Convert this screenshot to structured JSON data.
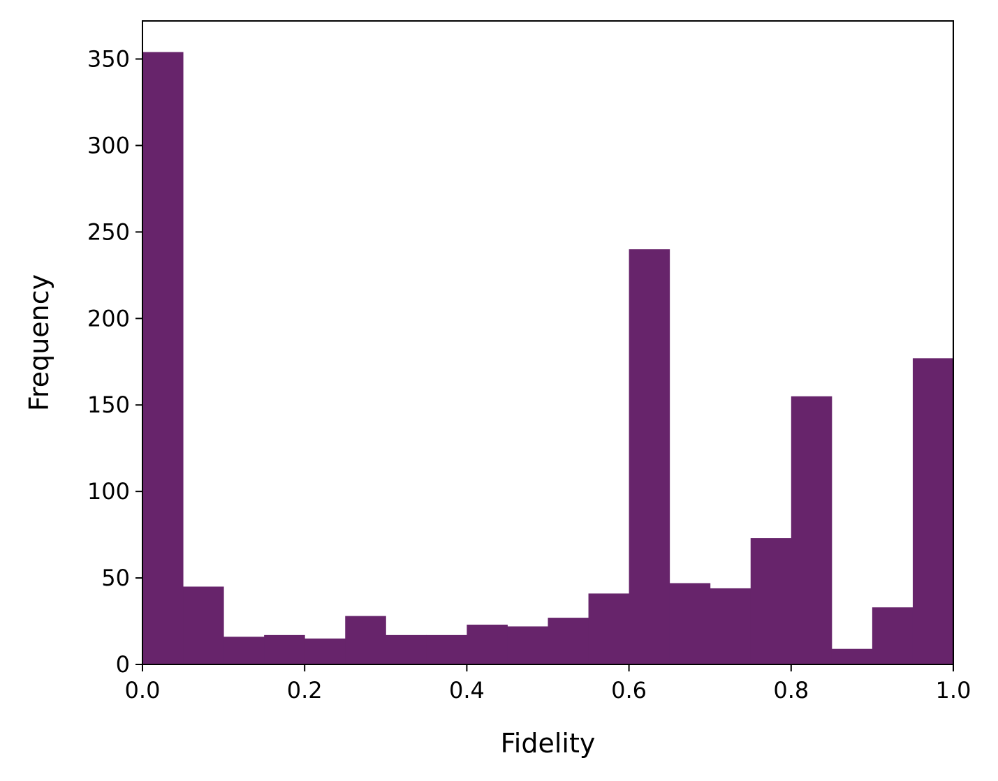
{
  "chart_data": {
    "type": "bar",
    "xlabel": "Fidelity",
    "ylabel": "Frequency",
    "xlim": [
      0.0,
      1.0
    ],
    "ylim": [
      0,
      372
    ],
    "bin_edges": [
      0.0,
      0.05,
      0.1,
      0.15,
      0.2,
      0.25,
      0.3,
      0.35,
      0.4,
      0.45,
      0.5,
      0.55,
      0.6,
      0.65,
      0.7,
      0.75,
      0.8,
      0.85,
      0.9,
      0.95,
      1.0
    ],
    "values": [
      354,
      45,
      16,
      17,
      15,
      28,
      17,
      17,
      23,
      22,
      27,
      41,
      240,
      47,
      44,
      73,
      155,
      9,
      33,
      177
    ],
    "xticks": [
      0.0,
      0.2,
      0.4,
      0.6,
      0.8,
      1.0
    ],
    "xtick_labels": [
      "0.0",
      "0.2",
      "0.4",
      "0.6",
      "0.8",
      "1.0"
    ],
    "yticks": [
      0,
      50,
      100,
      150,
      200,
      250,
      300,
      350
    ],
    "ytick_labels": [
      "0",
      "50",
      "100",
      "150",
      "200",
      "250",
      "300",
      "350"
    ],
    "bar_color": "#67246b",
    "grid": false,
    "legend": "none"
  }
}
